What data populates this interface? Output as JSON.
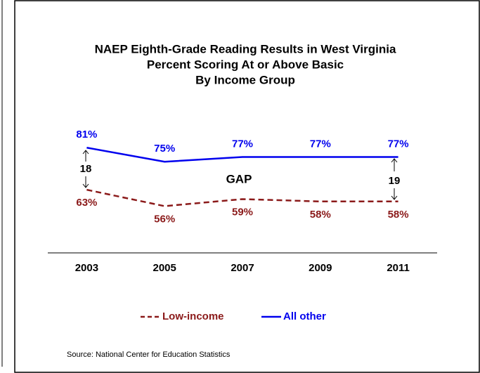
{
  "chart_data": {
    "type": "line",
    "title": [
      "NAEP Eighth-Grade Reading Results in West Virginia",
      "Percent Scoring At or Above Basic",
      "By Income Group"
    ],
    "categories": [
      "2003",
      "2005",
      "2007",
      "2009",
      "2011"
    ],
    "series": [
      {
        "name": "Low-income",
        "color": "#8b1a1a",
        "dash": true,
        "values": [
          63,
          56,
          59,
          58,
          58
        ],
        "value_labels": [
          "63%",
          "56%",
          "59%",
          "58%",
          "58%"
        ]
      },
      {
        "name": "All other",
        "color": "#0000ee",
        "dash": false,
        "values": [
          81,
          75,
          77,
          77,
          77
        ],
        "value_labels": [
          "81%",
          "75%",
          "77%",
          "77%",
          "77%"
        ]
      }
    ],
    "ylim": [
      36,
      100
    ],
    "annotations": [
      "18",
      "GAP",
      "19"
    ],
    "source": "Source: National Center for Education Statistics",
    "grid": false
  }
}
